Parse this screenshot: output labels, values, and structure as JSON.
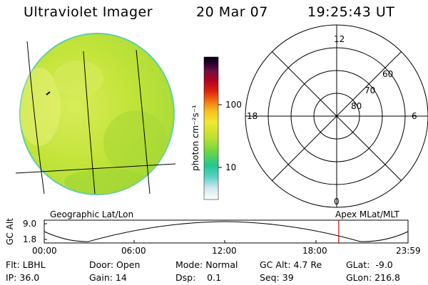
{
  "header": {
    "instrument": "Ultraviolet Imager",
    "date": "20 Mar 07",
    "time": "19:25:43 UT"
  },
  "colorbar": {
    "unit_label": "photon cm⁻²s⁻¹",
    "ticks": [
      "100",
      "10"
    ],
    "scale": "log",
    "colors": [
      "#ffffff",
      "#d0e8ee",
      "#58d0c8",
      "#20c890",
      "#70d840",
      "#c0e030",
      "#f0e830",
      "#f8c020",
      "#f08010",
      "#e02010",
      "#b00020",
      "#701040",
      "#300030",
      "#000010"
    ]
  },
  "image_panel": {
    "caption": "Geographic Lat/Lon",
    "disk_color": "#c8e83c"
  },
  "polar_plot": {
    "caption": "Apex MLat/MLT",
    "mlt_labels": {
      "top": "12",
      "left": "18",
      "right": "6",
      "bottom": "0"
    },
    "lat_labels": [
      "60",
      "70",
      "80"
    ]
  },
  "altitude_strip": {
    "ylabel": "GC Alt",
    "y_ticks": [
      "9.0",
      "1.8"
    ],
    "x_ticks": [
      "00:00",
      "06:00",
      "12:00",
      "18:00",
      "23:59"
    ],
    "current_time_marker_hours": 19.43,
    "marker_color": "#e00000"
  },
  "footer": {
    "row1": [
      "Flt: LBHL",
      "Door: Open",
      "Mode: Normal",
      "GC Alt: 4.7 Re",
      "GLat:  -9.0"
    ],
    "row2": [
      "IP: 36.0",
      "Gain: 14",
      "Dsp:    0.1",
      "Seq: 39",
      "GLon: 216.8"
    ]
  }
}
